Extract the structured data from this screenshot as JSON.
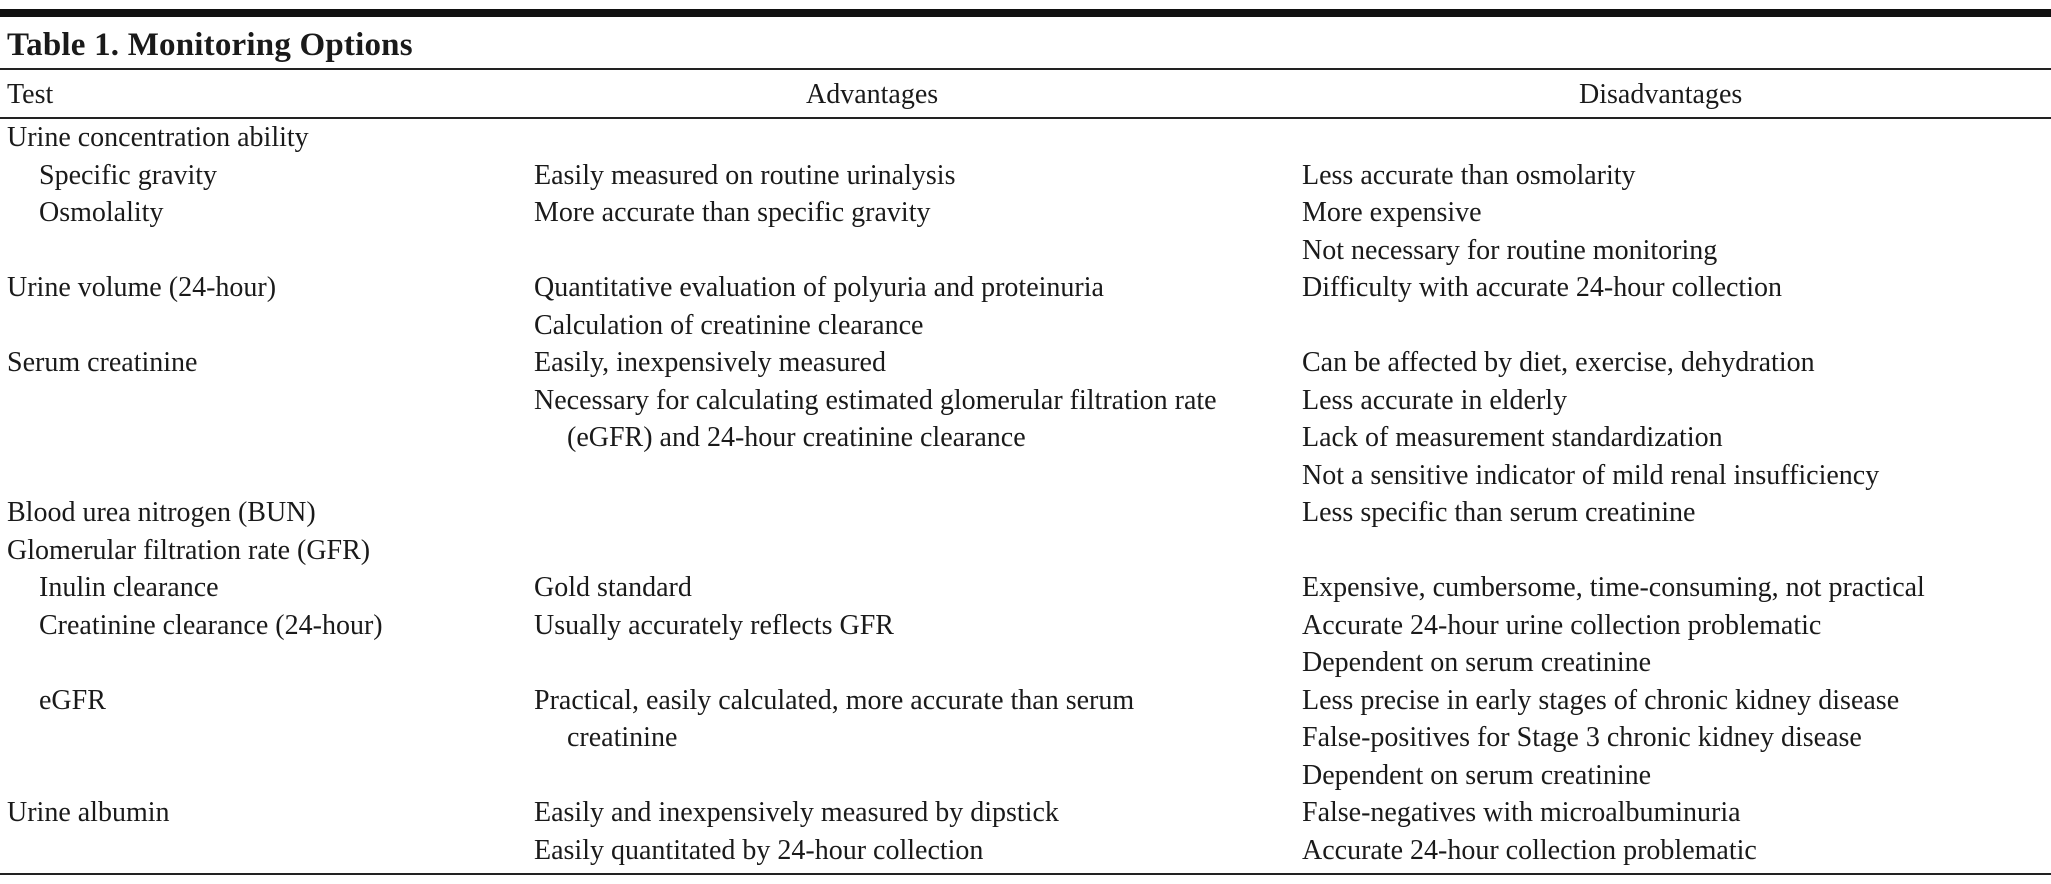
{
  "title": "Table 1. Monitoring Options",
  "table": {
    "columns": [
      "Test",
      "Advantages",
      "Disadvantages"
    ],
    "rows": [
      {
        "test": "Urine concentration ability",
        "subrows": [
          {
            "test": "Specific gravity",
            "advantages": [
              "Easily measured on routine urinalysis"
            ],
            "disadvantages": [
              "Less accurate than osmolarity"
            ]
          },
          {
            "test": "Osmolality",
            "advantages": [
              "More accurate than specific gravity"
            ],
            "disadvantages": [
              "More expensive",
              "Not necessary for routine monitoring"
            ]
          }
        ]
      },
      {
        "test": "Urine volume (24-hour)",
        "advantages": [
          "Quantitative evaluation of polyuria and proteinuria",
          "Calculation of creatinine clearance"
        ],
        "disadvantages": [
          "Difficulty with accurate 24-hour collection"
        ]
      },
      {
        "test": "Serum creatinine",
        "advantages": [
          "Easily, inexpensively measured",
          "Necessary for calculating estimated glomerular filtration rate (eGFR) and 24-hour creatinine clearance"
        ],
        "disadvantages": [
          "Can be affected by diet, exercise, dehydration",
          "Less accurate in elderly",
          "Lack of measurement standardization",
          "Not a sensitive indicator of mild renal insufficiency"
        ]
      },
      {
        "test": "Blood urea nitrogen (BUN)",
        "advantages": [],
        "disadvantages": [
          "Less specific than serum creatinine"
        ]
      },
      {
        "test": "Glomerular filtration rate (GFR)",
        "subrows": [
          {
            "test": "Inulin clearance",
            "advantages": [
              "Gold standard"
            ],
            "disadvantages": [
              "Expensive, cumbersome, time-consuming, not practical"
            ]
          },
          {
            "test": "Creatinine clearance (24-hour)",
            "advantages": [
              "Usually accurately reflects GFR"
            ],
            "disadvantages": [
              "Accurate 24-hour urine collection problematic",
              "Dependent on serum creatinine"
            ]
          },
          {
            "test": "eGFR",
            "advantages": [
              "Practical, easily calculated, more accurate than serum creatinine"
            ],
            "disadvantages": [
              "Less precise in early stages of chronic kidney disease",
              "False-positives for Stage 3 chronic kidney disease",
              "Dependent on serum creatinine"
            ]
          }
        ]
      },
      {
        "test": "Urine albumin",
        "advantages": [
          "Easily and inexpensively measured by dipstick",
          "Easily quantitated by 24-hour collection"
        ],
        "disadvantages": [
          "False-negatives with microalbuminuria",
          "Accurate 24-hour collection problematic"
        ]
      }
    ]
  }
}
